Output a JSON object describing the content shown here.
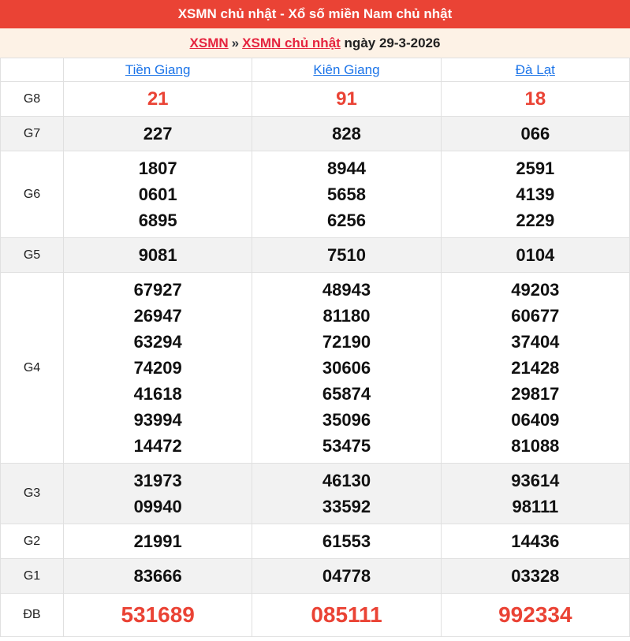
{
  "banner": {
    "title": "XSMN chủ nhật - Xổ số miền Nam chủ nhật"
  },
  "breadcrumb": {
    "link_xsmn": "XSMN",
    "separator": "»",
    "link_xsmn_sunday": "XSMN chủ nhật",
    "date_text": "ngày 29-3-2026"
  },
  "table": {
    "columns": [
      "Tiền Giang",
      "Kiên Giang",
      "Đà Lạt"
    ],
    "rows": [
      {
        "id": "g8",
        "label": "G8",
        "style": "red-large",
        "shaded": false,
        "values": [
          [
            "21"
          ],
          [
            "91"
          ],
          [
            "18"
          ]
        ]
      },
      {
        "id": "g7",
        "label": "G7",
        "style": "normal",
        "shaded": true,
        "values": [
          [
            "227"
          ],
          [
            "828"
          ],
          [
            "066"
          ]
        ]
      },
      {
        "id": "g6",
        "label": "G6",
        "style": "normal",
        "shaded": false,
        "values": [
          [
            "1807",
            "0601",
            "6895"
          ],
          [
            "8944",
            "5658",
            "6256"
          ],
          [
            "2591",
            "4139",
            "2229"
          ]
        ]
      },
      {
        "id": "g5",
        "label": "G5",
        "style": "normal",
        "shaded": true,
        "values": [
          [
            "9081"
          ],
          [
            "7510"
          ],
          [
            "0104"
          ]
        ]
      },
      {
        "id": "g4",
        "label": "G4",
        "style": "normal",
        "shaded": false,
        "values": [
          [
            "67927",
            "26947",
            "63294",
            "74209",
            "41618",
            "93994",
            "14472"
          ],
          [
            "48943",
            "81180",
            "72190",
            "30606",
            "65874",
            "35096",
            "53475"
          ],
          [
            "49203",
            "60677",
            "37404",
            "21428",
            "29817",
            "06409",
            "81088"
          ]
        ]
      },
      {
        "id": "g3",
        "label": "G3",
        "style": "normal",
        "shaded": true,
        "values": [
          [
            "31973",
            "09940"
          ],
          [
            "46130",
            "33592"
          ],
          [
            "93614",
            "98111"
          ]
        ]
      },
      {
        "id": "g2",
        "label": "G2",
        "style": "normal",
        "shaded": false,
        "values": [
          [
            "21991"
          ],
          [
            "61553"
          ],
          [
            "14436"
          ]
        ]
      },
      {
        "id": "g1",
        "label": "G1",
        "style": "normal",
        "shaded": true,
        "values": [
          [
            "83666"
          ],
          [
            "04778"
          ],
          [
            "03328"
          ]
        ]
      },
      {
        "id": "db",
        "label": "ĐB",
        "style": "red-xl",
        "shaded": false,
        "values": [
          [
            "531689"
          ],
          [
            "085111"
          ],
          [
            "992334"
          ]
        ]
      }
    ]
  },
  "colors": {
    "banner_bg": "#ea4335",
    "banner_text": "#ffffff",
    "breadcrumb_bg": "#fdf2e6",
    "breadcrumb_link_red": "#e5243f",
    "header_link_blue": "#1a73e8",
    "number_black": "#111111",
    "number_red": "#ea4335",
    "row_shade": "#f2f2f2",
    "cell_border": "#e0e0e0"
  }
}
